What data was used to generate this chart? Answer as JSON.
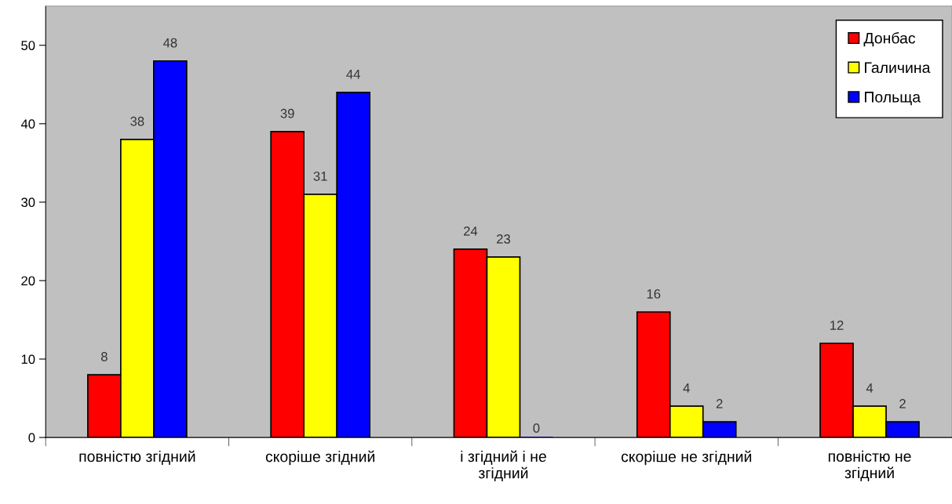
{
  "chart_data": {
    "type": "bar",
    "categories": [
      "повністю згідний",
      "скоріше згідний",
      "і згідний і не\nзгідний",
      "скоріше не згідний",
      "повністю не\nзгідний"
    ],
    "series": [
      {
        "name": "Донбас",
        "color": "#ff0000",
        "values": [
          8,
          39,
          24,
          16,
          12
        ]
      },
      {
        "name": "Галичина",
        "color": "#ffff00",
        "values": [
          38,
          31,
          23,
          4,
          4
        ]
      },
      {
        "name": "Польща",
        "color": "#0000ff",
        "values": [
          48,
          44,
          0,
          2,
          2
        ]
      }
    ],
    "ylim": [
      0,
      55
    ],
    "yticks": [
      0,
      10,
      20,
      30,
      40,
      50
    ],
    "data_labels": true,
    "grid": false,
    "legend": "top right"
  }
}
